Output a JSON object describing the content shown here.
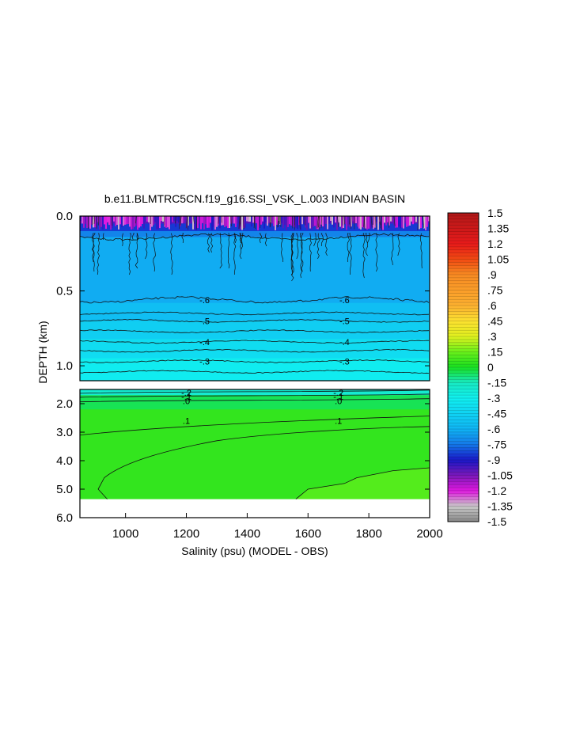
{
  "chart_data": {
    "type": "heatmap",
    "title": "b.e11.BLMTRC5CN.f19_g16.SSI_VSK_L.003 INDIAN BASIN",
    "xlabel": "Salinity (psu) (MODEL - OBS)",
    "ylabel": "DEPTH (km)",
    "xlim": [
      850,
      2000
    ],
    "x_ticks": [
      "1000",
      "1200",
      "1400",
      "1600",
      "1800",
      "2000"
    ],
    "x_tick_values": [
      1000,
      1200,
      1400,
      1600,
      1800,
      2000
    ],
    "upper_panel": {
      "ylim": [
        0.0,
        1.1
      ],
      "y_ticks": [
        "0.0",
        "0.5",
        "1.0"
      ],
      "y_tick_values": [
        0.0,
        0.5,
        1.0
      ]
    },
    "lower_panel": {
      "ylim": [
        1.5,
        6.0
      ],
      "y_ticks": [
        "2.0",
        "3.0",
        "4.0",
        "5.0",
        "6.0"
      ],
      "y_tick_values": [
        2.0,
        3.0,
        4.0,
        5.0,
        6.0
      ],
      "no_data_below_depth": 5.35
    },
    "colorbar": {
      "labels": [
        "1.5",
        "1.35",
        "1.2",
        "1.05",
        ".9",
        ".75",
        ".6",
        ".45",
        ".3",
        ".15",
        "0",
        "-.15",
        "-.3",
        "-.45",
        "-.6",
        "-.75",
        "-.9",
        "-1.05",
        "-1.2",
        "-1.35",
        "-1.5"
      ],
      "values": [
        1.5,
        1.35,
        1.2,
        1.05,
        0.9,
        0.75,
        0.6,
        0.45,
        0.3,
        0.15,
        0,
        -0.15,
        -0.3,
        -0.45,
        -0.6,
        -0.75,
        -0.9,
        -1.05,
        -1.2,
        -1.35,
        -1.5
      ],
      "color_stops": [
        {
          "v": 1.5,
          "color": "#b01818"
        },
        {
          "v": 1.2,
          "color": "#e81a1a"
        },
        {
          "v": 1.05,
          "color": "#f04a12"
        },
        {
          "v": 0.9,
          "color": "#f88a22"
        },
        {
          "v": 0.6,
          "color": "#fcb030"
        },
        {
          "v": 0.45,
          "color": "#fce030"
        },
        {
          "v": 0.3,
          "color": "#e0f01e"
        },
        {
          "v": 0.15,
          "color": "#6af01a"
        },
        {
          "v": 0.0,
          "color": "#18e020"
        },
        {
          "v": -0.15,
          "color": "#18e8c0"
        },
        {
          "v": -0.3,
          "color": "#10f0f0"
        },
        {
          "v": -0.6,
          "color": "#10b4f4"
        },
        {
          "v": -0.75,
          "color": "#1478e8"
        },
        {
          "v": -0.9,
          "color": "#1818c8"
        },
        {
          "v": -1.05,
          "color": "#7a18b8"
        },
        {
          "v": -1.2,
          "color": "#e018e0"
        },
        {
          "v": -1.35,
          "color": "#c8c8c8"
        },
        {
          "v": -1.5,
          "color": "#888888"
        }
      ]
    },
    "upper_field": [
      {
        "depth_from": 0.0,
        "depth_to": 0.02,
        "value": -1.2
      },
      {
        "depth_from": 0.02,
        "depth_to": 0.05,
        "value": -1.0
      },
      {
        "depth_from": 0.05,
        "depth_to": 0.1,
        "value": -0.85
      },
      {
        "depth_from": 0.1,
        "depth_to": 0.14,
        "value": -0.72
      },
      {
        "depth_from": 0.14,
        "depth_to": 0.58,
        "value": -0.62
      },
      {
        "depth_from": 0.58,
        "depth_to": 0.7,
        "value": -0.55
      },
      {
        "depth_from": 0.7,
        "depth_to": 0.82,
        "value": -0.47
      },
      {
        "depth_from": 0.82,
        "depth_to": 0.95,
        "value": -0.4
      },
      {
        "depth_from": 0.95,
        "depth_to": 1.1,
        "value": -0.32
      }
    ],
    "lower_field": [
      {
        "depth_from": 1.5,
        "depth_to": 1.7,
        "value": -0.2
      },
      {
        "depth_from": 1.7,
        "depth_to": 2.2,
        "value": -0.05
      },
      {
        "depth_from": 2.2,
        "depth_to": 5.35,
        "value": 0.05
      }
    ],
    "contours_upper": [
      {
        "depth": 0.14,
        "label": ""
      },
      {
        "depth": 0.56,
        "label": "-.6"
      },
      {
        "depth": 0.65,
        "label": ""
      },
      {
        "depth": 0.7,
        "label": "-.5"
      },
      {
        "depth": 0.77,
        "label": ""
      },
      {
        "depth": 0.84,
        "label": "-.4"
      },
      {
        "depth": 0.9,
        "label": ""
      },
      {
        "depth": 0.97,
        "label": "-.3"
      },
      {
        "depth": 1.04,
        "label": ""
      }
    ],
    "contours_lower": [
      {
        "depth": 1.58,
        "label": "-.2"
      },
      {
        "depth": 1.72,
        "label": "-.1"
      },
      {
        "depth": 1.88,
        "label": ".0"
      },
      {
        "depth": 2.6,
        "label": ".1"
      }
    ],
    "legend": "colorbar-right",
    "grid": false
  }
}
